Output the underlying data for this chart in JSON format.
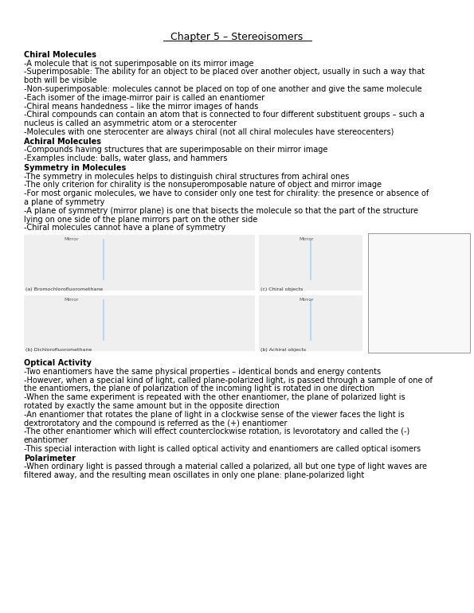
{
  "title": "Chapter 5 – Stereoisomers",
  "bg": "#ffffff",
  "tc": "#000000",
  "fn": "DejaVu Sans",
  "fs": 7.0,
  "lh": 10.8,
  "lm": 30,
  "sections": [
    {
      "heading": "Chiral Molecules",
      "lines": [
        "-A molecule that is not superimposable on its mirror image",
        "-Superimposable: The ability for an object to be placed over another object, usually in such a way that\nboth will be visible",
        "-Non-superimposable: molecules cannot be placed on top of one another and give the same molecule",
        "-Each isomer of the image-mirror pair is called an enantiomer",
        "-Chiral means handedness – like the mirror images of hands",
        "-Chiral compounds can contain an atom that is connected to four different substituent groups – such a\nnucleus is called an asymmetric atom or a sterocenter",
        "-Molecules with one sterocenter are always chiral (not all chiral molecules have stereocenters)"
      ]
    },
    {
      "heading": "Achiral Molecules",
      "lines": [
        "-Compounds having structures that are superimposable on their mirror image",
        "-Examples include: balls, water glass, and hammers"
      ]
    },
    {
      "heading": "Symmetry in Molecules",
      "lines": [
        "-The symmetry in molecules helps to distinguish chiral structures from achiral ones",
        "-The only criterion for chirality is the nonsuperomposable nature of object and mirror image",
        "-For most organic molecules, we have to consider only one test for chirality: the presence or absence of\na plane of symmetry",
        "-A plane of symmetry (mirror plane) is one that bisects the molecule so that the part of the structure\nlying on one side of the plane mirrors part on the other side",
        "-Chiral molecules cannot have a plane of symmetry"
      ]
    },
    {
      "heading": "Optical Activity",
      "lines": [
        "-Two enantiomers have the same physical properties – identical bonds and energy contents",
        "-However, when a special kind of light, called plane-polarized light, is passed through a sample of one of\nthe enantiomers, the plane of polarization of the incoming light is rotated in one direction",
        "-When the same experiment is repeated with the other enantiomer, the plane of polarized light is\nrotated by exactly the same amount but in the opposite direction",
        "-An enantiomer that rotates the plane of light in a clockwise sense of the viewer faces the light is\ndextrorotatory and the compound is referred as the (+) enantiomer",
        "-The other enantiomer which will effect counterclockwise rotation, is levorotatory and called the (-)\nenantiomer",
        "-This special interaction with light is called optical activity and enantiomers are called optical isomers"
      ]
    },
    {
      "heading": "Polarimeter",
      "lines": [
        "-When ordinary light is passed through a material called a polarized, all but one type of light waves are\nfiltered away, and the resulting mean oscillates in only one plane: plane-polarized light"
      ]
    }
  ],
  "img_captions": [
    "(a) Bromochlorofluoromethane",
    "(c) Chiral objects",
    "(b) Dichlorofluoromethane",
    "(b) Achiral objects"
  ],
  "mirror_label": "Mirror",
  "img_block_color": "#efefef",
  "img_right_color": "#f8f8f8",
  "img_right_border": "#888888",
  "mirror_line_color": "#aad4f5"
}
